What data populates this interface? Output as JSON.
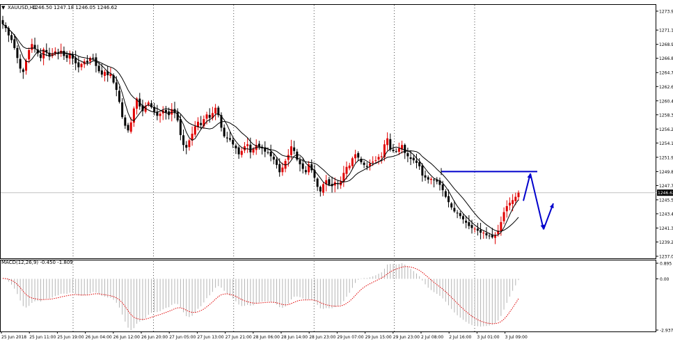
{
  "header": {
    "symbol_label": "XAUUSD,H1",
    "ohlc_label": "1246.50 1247.18 1246.05 1246.62",
    "menu_icon": "triangle-down-icon"
  },
  "macd_panel": {
    "label": "MACD(12,26,9) -0.450 -1.809"
  },
  "chart_data": [
    {
      "type": "candlestick",
      "title": "XAUUSD,H1",
      "ylim": [
        1237.05,
        1273.95
      ],
      "price_ticks": [
        "1273.95",
        "1271.10",
        "1268.95",
        "1266.85",
        "1264.70",
        "1262.60",
        "1260.45",
        "1258.35",
        "1256.20",
        "1254.10",
        "1251.95",
        "1249.80",
        "1247.70",
        "1245.55",
        "1243.45",
        "1241.30",
        "1239.20",
        "1237.05"
      ],
      "current_price": "1246.62",
      "time_labels": [
        "25 Jun 2018",
        "25 Jun 11:00",
        "25 Jun 19:00",
        "26 Jun 04:00",
        "26 Jun 12:00",
        "26 Jun 20:00",
        "27 Jun 05:00",
        "27 Jun 13:00",
        "27 Jun 21:00",
        "28 Jun 06:00",
        "28 Jun 14:00",
        "28 Jun 23:00",
        "29 Jun 07:00",
        "29 Jun 15:00",
        "29 Jun 23:00",
        "2 Jul 08:00",
        "2 Jul 16:00",
        "3 Jul 01:00",
        "3 Jul 09:00"
      ],
      "session_separators": [
        "26 Jun",
        "27 Jun",
        "28 Jun",
        "29 Jun",
        "2 Jul",
        "3 Jul"
      ],
      "closes": [
        1272.0,
        1271.4,
        1270.3,
        1269.6,
        1268.4,
        1266.9,
        1265.3,
        1264.8,
        1266.5,
        1268.1,
        1269.0,
        1268.3,
        1267.6,
        1266.9,
        1268.2,
        1267.8,
        1267.1,
        1267.6,
        1267.9,
        1267.5,
        1268.0,
        1267.2,
        1266.9,
        1267.6,
        1266.8,
        1266.1,
        1265.5,
        1266.0,
        1266.4,
        1266.2,
        1266.9,
        1266.8,
        1265.7,
        1264.9,
        1264.4,
        1264.8,
        1264.3,
        1264.5,
        1263.2,
        1262.1,
        1260.3,
        1258.0,
        1256.7,
        1256.0,
        1257.2,
        1259.3,
        1260.8,
        1259.6,
        1258.9,
        1259.7,
        1260.2,
        1259.5,
        1258.8,
        1258.2,
        1258.5,
        1259.0,
        1258.7,
        1258.3,
        1259.2,
        1258.6,
        1257.5,
        1255.3,
        1253.8,
        1253.4,
        1254.5,
        1255.5,
        1256.6,
        1257.3,
        1256.8,
        1257.7,
        1258.4,
        1257.9,
        1258.6,
        1259.4,
        1258.3,
        1256.4,
        1255.1,
        1254.8,
        1254.6,
        1253.9,
        1253.3,
        1252.4,
        1252.9,
        1253.6,
        1253.9,
        1252.7,
        1253.2,
        1253.8,
        1253.6,
        1253.4,
        1252.8,
        1252.7,
        1252.1,
        1251.6,
        1250.8,
        1249.7,
        1250.4,
        1251.4,
        1252.3,
        1253.6,
        1252.9,
        1251.6,
        1250.9,
        1250.2,
        1249.7,
        1250.9,
        1250.0,
        1248.9,
        1247.5,
        1246.8,
        1247.9,
        1248.5,
        1247.8,
        1247.6,
        1248.2,
        1247.9,
        1248.3,
        1249.6,
        1250.5,
        1250.7,
        1251.8,
        1252.4,
        1251.9,
        1251.2,
        1250.8,
        1250.5,
        1251.0,
        1251.3,
        1251.5,
        1252.0,
        1252.1,
        1253.9,
        1254.8,
        1253.1,
        1252.9,
        1252.8,
        1253.3,
        1253.8,
        1252.6,
        1252.1,
        1251.7,
        1251.5,
        1251.1,
        1250.6,
        1249.2,
        1248.9,
        1248.6,
        1248.7,
        1248.5,
        1248.3,
        1247.8,
        1247.0,
        1246.0,
        1245.2,
        1244.4,
        1243.8,
        1243.5,
        1243.1,
        1242.6,
        1242.1,
        1241.6,
        1241.3,
        1241.2,
        1240.9,
        1240.6,
        1240.6,
        1240.2,
        1240.1,
        1239.9,
        1240.2,
        1240.9,
        1242.2,
        1243.7,
        1244.6,
        1245.1,
        1245.5,
        1246.0,
        1246.62
      ],
      "trend_line": {
        "price": 1249.8
      },
      "forecast_path": [
        1245.4,
        1249.5,
        1241.1,
        1245.0
      ]
    },
    {
      "type": "bar",
      "title": "MACD(12,26,9) -0.450 -1.809",
      "ylim": [
        -2.937,
        0.895
      ],
      "ticks": [
        "0.895",
        "0.00",
        "-2.937"
      ],
      "macd": -0.45,
      "signal": -1.809
    }
  ]
}
